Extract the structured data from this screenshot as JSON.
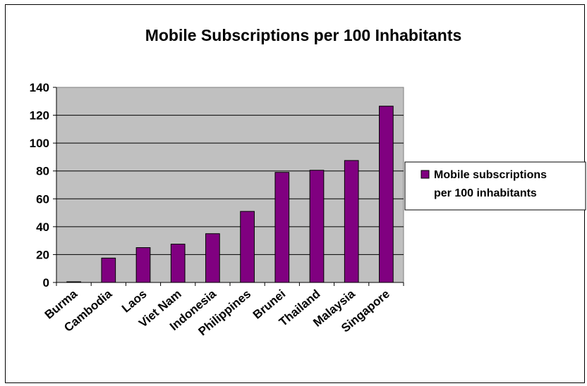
{
  "chart_data": {
    "type": "bar",
    "title": "Mobile Subscriptions per 100 Inhabitants",
    "xlabel": "",
    "ylabel": "",
    "categories": [
      "Burma",
      "Cambodia",
      "Laos",
      "Viet Nam",
      "Indonesia",
      "Philippines",
      "Brunei",
      "Thailand",
      "Malaysia",
      "Singapore"
    ],
    "series": [
      {
        "name": "Mobile subscriptions per 100 inhabitants",
        "name_lines": [
          "Mobile subscriptions",
          "per 100 inhabitants"
        ],
        "values": [
          0.5,
          17.5,
          25,
          27.5,
          35,
          51,
          79,
          80.5,
          87.5,
          126.5
        ],
        "color": "#800080"
      }
    ],
    "ylim": [
      0,
      140
    ],
    "yticks": [
      0,
      20,
      40,
      60,
      80,
      100,
      120,
      140
    ],
    "grid": true,
    "plot_background": "#c0c0c0",
    "legend_position": "right"
  }
}
